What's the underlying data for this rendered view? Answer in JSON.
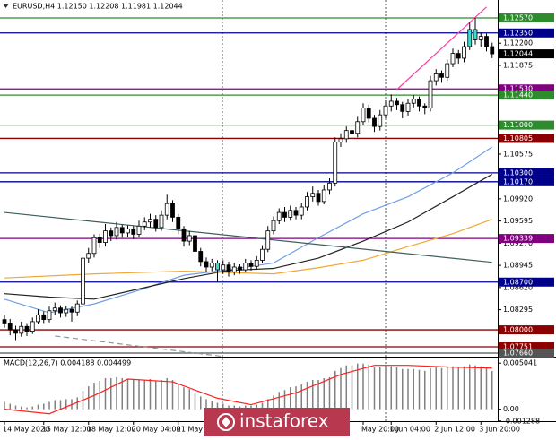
{
  "chart_data": {
    "type": "candlestick",
    "title": "EURUSD,H4  1.12150 1.12208 1.11981 1.12044",
    "categories": [
      "14 May 2020",
      null,
      null,
      null,
      null,
      null,
      null,
      "15 May 12:00",
      null,
      null,
      null,
      null,
      null,
      null,
      null,
      "18 May 12:00",
      null,
      null,
      null,
      null,
      null,
      null,
      null,
      "20 May 04:00",
      null,
      null,
      null,
      null,
      null,
      null,
      null,
      "21 May 12",
      null,
      null,
      null,
      null,
      null,
      null,
      null,
      null,
      null,
      null,
      null,
      null,
      null,
      null,
      null,
      null,
      null,
      null,
      null,
      null,
      null,
      null,
      null,
      null,
      null,
      null,
      null,
      null,
      null,
      null,
      null,
      null,
      "May 20:00",
      null,
      null,
      null,
      null,
      "1 Jun 04:00",
      null,
      null,
      null,
      null,
      null,
      null,
      null,
      "2 Jun 12:00",
      null,
      null,
      null,
      null,
      null,
      null,
      null,
      "3 Jun 20:00",
      null,
      null
    ],
    "open": [
      1.0815,
      1.081,
      1.08,
      1.0795,
      1.0805,
      1.0798,
      1.0812,
      1.0822,
      1.0815,
      1.0828,
      1.0832,
      1.0825,
      1.083,
      1.0826,
      1.0838,
      1.0905,
      1.0912,
      1.0935,
      1.0928,
      1.0945,
      1.0938,
      1.095,
      1.0942,
      1.0948,
      1.094,
      1.0952,
      1.0958,
      1.0962,
      1.095,
      1.0968,
      1.0985,
      1.0965,
      1.0948,
      1.093,
      1.0938,
      1.0915,
      1.09,
      1.0892,
      1.0898,
      1.0888,
      1.0895,
      1.0885,
      1.0892,
      1.0888,
      1.0898,
      1.0893,
      1.0902,
      1.0918,
      1.0945,
      1.096,
      1.0972,
      1.0965,
      1.0975,
      1.0968,
      1.098,
      1.0995,
      1.1,
      1.0988,
      1.1005,
      1.1015,
      1.1075,
      1.108,
      1.1092,
      1.1088,
      1.1105,
      1.1125,
      1.111,
      1.1098,
      1.1115,
      1.1128,
      1.1135,
      1.113,
      1.112,
      1.1132,
      1.1138,
      1.1128,
      1.1125,
      1.1165,
      1.1175,
      1.117,
      1.119,
      1.1205,
      1.1198,
      1.1215,
      1.124,
      1.1225,
      1.123,
      1.1215
    ],
    "high": [
      1.0822,
      1.0816,
      1.0806,
      1.0812,
      1.081,
      1.0818,
      1.083,
      1.0827,
      1.0834,
      1.084,
      1.0836,
      1.0835,
      1.0834,
      1.0843,
      1.0912,
      1.092,
      1.094,
      1.0941,
      1.0955,
      1.095,
      1.0958,
      1.0954,
      1.0953,
      1.0952,
      1.096,
      1.0965,
      1.097,
      1.0968,
      1.0975,
      1.0998,
      1.099,
      1.097,
      1.0952,
      1.0945,
      1.0942,
      1.092,
      1.0906,
      1.0904,
      1.0902,
      1.0902,
      1.09,
      1.0898,
      1.0896,
      1.0904,
      1.0902,
      1.0908,
      1.0924,
      1.0952,
      1.0966,
      1.0978,
      1.098,
      1.0982,
      1.098,
      1.0986,
      1.1002,
      1.101,
      1.1005,
      1.1012,
      1.1022,
      1.1082,
      1.1088,
      1.1098,
      1.1096,
      1.1112,
      1.1132,
      1.113,
      1.1115,
      1.1122,
      1.1136,
      1.1145,
      1.114,
      1.1134,
      1.1138,
      1.1144,
      1.1142,
      1.1132,
      1.1172,
      1.1182,
      1.118,
      1.1196,
      1.1212,
      1.121,
      1.1222,
      1.125,
      1.1257,
      1.1236,
      1.1234,
      1.12208
    ],
    "low": [
      1.0803,
      1.0792,
      1.0785,
      1.079,
      1.0791,
      1.0794,
      1.0808,
      1.081,
      1.0811,
      1.0822,
      1.0818,
      1.0819,
      1.0812,
      1.082,
      1.0834,
      1.0898,
      1.0906,
      1.092,
      1.0922,
      1.093,
      1.0932,
      1.0935,
      1.0936,
      1.0933,
      1.0936,
      1.0946,
      1.095,
      1.0944,
      1.0945,
      1.0962,
      1.0958,
      1.094,
      1.0922,
      1.0924,
      1.0905,
      1.0893,
      1.0885,
      1.0886,
      1.087,
      1.0882,
      1.0878,
      1.088,
      1.0882,
      1.0884,
      1.0887,
      1.0888,
      1.0898,
      1.0914,
      1.094,
      1.0955,
      1.0958,
      1.096,
      1.0962,
      1.0962,
      1.0975,
      1.0988,
      1.0982,
      1.0984,
      1.0998,
      1.101,
      1.1068,
      1.1074,
      1.108,
      1.1082,
      1.11,
      1.1104,
      1.109,
      1.1092,
      1.111,
      1.112,
      1.1122,
      1.111,
      1.1114,
      1.1126,
      1.112,
      1.1116,
      1.112,
      1.1158,
      1.1162,
      1.1165,
      1.1185,
      1.119,
      1.1192,
      1.121,
      1.1218,
      1.1215,
      1.1208,
      1.11981
    ],
    "close": [
      1.081,
      1.08,
      1.0795,
      1.0805,
      1.0798,
      1.0812,
      1.0822,
      1.0815,
      1.0828,
      1.0832,
      1.0825,
      1.083,
      1.0826,
      1.0838,
      1.0905,
      1.0912,
      1.0935,
      1.0928,
      1.0945,
      1.0938,
      1.095,
      1.0942,
      1.0948,
      1.094,
      1.0952,
      1.0958,
      1.0962,
      1.095,
      1.0968,
      1.0985,
      1.0965,
      1.0948,
      1.093,
      1.0938,
      1.0915,
      1.09,
      1.0892,
      1.0898,
      1.0888,
      1.0895,
      1.0885,
      1.0892,
      1.0888,
      1.0898,
      1.0893,
      1.0902,
      1.0918,
      1.0945,
      1.096,
      1.0972,
      1.0965,
      1.0975,
      1.0968,
      1.098,
      1.0995,
      1.1,
      1.0988,
      1.1005,
      1.1015,
      1.1075,
      1.108,
      1.1092,
      1.1088,
      1.1105,
      1.1125,
      1.111,
      1.1098,
      1.1115,
      1.1128,
      1.1135,
      1.113,
      1.112,
      1.1132,
      1.1138,
      1.1128,
      1.1125,
      1.1165,
      1.1175,
      1.117,
      1.119,
      1.1205,
      1.1198,
      1.1215,
      1.124,
      1.1225,
      1.123,
      1.1215,
      1.12044
    ],
    "up_color": "#ffffff",
    "down_color": "#000000",
    "highlight_color": "#3fd9d0",
    "highlight_bars": [
      38,
      83,
      84
    ],
    "ylim": [
      1.07607,
      1.12833
    ],
    "yticks": [
      {
        "value": 1.122,
        "label": "1.12200"
      },
      {
        "value": 1.11875,
        "label": "1.11875"
      },
      {
        "value": 1.10575,
        "label": "1.10575"
      },
      {
        "value": 1.0992,
        "label": "1.09920"
      },
      {
        "value": 1.09595,
        "label": "1.09595"
      },
      {
        "value": 1.0927,
        "label": "1.09270"
      },
      {
        "value": 1.08945,
        "label": "1.08945"
      },
      {
        "value": 1.0862,
        "label": "1.08620"
      },
      {
        "value": 1.08295,
        "label": "1.08295"
      },
      {
        "value": 1.0797,
        "label": "1.07970"
      }
    ],
    "levels": [
      {
        "value": 1.1257,
        "label": "1.12570",
        "color": "#2e8b2e"
      },
      {
        "value": 1.1235,
        "label": "1.12350",
        "color": "#00008b"
      },
      {
        "value": 1.1153,
        "label": "1.11530",
        "color": "#800080"
      },
      {
        "value": 1.1144,
        "label": "1.11440",
        "color": "#2e8b2e"
      },
      {
        "value": 1.11,
        "label": "1.11000",
        "color": "#2e8b2e"
      },
      {
        "value": 1.10805,
        "label": "1.10805",
        "color": "#8b0000"
      },
      {
        "value": 1.103,
        "label": "1.10300",
        "color": "#00008b"
      },
      {
        "value": 1.1017,
        "label": "1.10170",
        "color": "#00008b"
      },
      {
        "value": 1.09339,
        "label": "1.09339",
        "color": "#800080"
      },
      {
        "value": 1.087,
        "label": "1.08700",
        "color": "#00008b"
      },
      {
        "value": 1.08,
        "label": "1.08000",
        "color": "#8b0000"
      },
      {
        "value": 1.07751,
        "label": "1.07751",
        "color": "#8b0000"
      },
      {
        "value": 1.0766,
        "label": "1.07660",
        "color": "#555555"
      }
    ],
    "overlays": [
      {
        "color": "#6f9fe6",
        "x": [
          0,
          8,
          16,
          24,
          32,
          40,
          48,
          56,
          64,
          72,
          80,
          87
        ],
        "values": [
          1.0845,
          1.0825,
          1.0838,
          1.0858,
          1.088,
          1.0888,
          1.0898,
          1.0935,
          1.097,
          1.0995,
          1.103,
          1.1068
        ]
      },
      {
        "color": "#222222",
        "x": [
          0,
          8,
          16,
          24,
          32,
          40,
          48,
          56,
          64,
          72,
          80,
          87
        ],
        "values": [
          1.0853,
          1.0848,
          1.0845,
          1.086,
          1.0875,
          1.0887,
          1.089,
          1.0905,
          1.093,
          1.0958,
          1.0995,
          1.1028
        ]
      },
      {
        "color": "#f0a830",
        "x": [
          0,
          16,
          32,
          48,
          56,
          64,
          72,
          80,
          87
        ],
        "values": [
          1.0876,
          1.0882,
          1.0886,
          1.0882,
          1.0891,
          1.0902,
          1.0922,
          1.0941,
          1.0962
        ]
      },
      {
        "color": "#3f5f5f",
        "x": [
          0,
          87
        ],
        "values": [
          1.0972,
          1.0899
        ]
      },
      {
        "color": "#ff3fa0",
        "x": [
          70,
          86
        ],
        "values": [
          1.1152,
          1.1273
        ]
      },
      {
        "color": "#8a9a9a",
        "x": [
          9,
          39
        ],
        "values": [
          1.0791,
          1.0761
        ],
        "dashed": true
      }
    ],
    "watermark": "instaforex",
    "indicator": {
      "type": "macd",
      "title": "MACD(12,26,7) 0.004188 0.004499",
      "color": "#808080",
      "values": [
        0.0008,
        0.0006,
        0.0004,
        0.0003,
        0.0002,
        0.0003,
        0.0005,
        0.0006,
        0.0008,
        0.001,
        0.001,
        0.0011,
        0.0011,
        0.0013,
        0.002,
        0.0025,
        0.0029,
        0.0031,
        0.0034,
        0.0034,
        0.0035,
        0.0034,
        0.0033,
        0.0032,
        0.0032,
        0.0032,
        0.0033,
        0.0031,
        0.0032,
        0.0034,
        0.0032,
        0.0028,
        0.0024,
        0.0022,
        0.0018,
        0.0014,
        0.0011,
        0.0009,
        0.0007,
        0.0006,
        0.0004,
        0.0004,
        0.0003,
        0.0004,
        0.0004,
        0.0005,
        0.0007,
        0.0011,
        0.0015,
        0.0019,
        0.0021,
        0.0024,
        0.0025,
        0.0027,
        0.003,
        0.0032,
        0.0032,
        0.0034,
        0.0035,
        0.0042,
        0.0045,
        0.0048,
        0.0048,
        0.005,
        0.005,
        0.0049,
        0.0046,
        0.0046,
        0.0047,
        0.0047,
        0.0046,
        0.0044,
        0.0044,
        0.0044,
        0.0043,
        0.0042,
        0.0045,
        0.0046,
        0.0045,
        0.0046,
        0.0047,
        0.0046,
        0.0047,
        0.0049,
        0.0048,
        0.0047,
        0.0045,
        0.004188
      ],
      "signal": {
        "color": "#ff2020",
        "x": [
          0,
          8,
          16,
          22,
          30,
          38,
          44,
          52,
          60,
          66,
          72,
          80,
          87
        ],
        "values": [
          0.0,
          -0.0005,
          0.0015,
          0.0033,
          0.003,
          0.0012,
          0.0005,
          0.0018,
          0.0038,
          0.0048,
          0.0048,
          0.0046,
          0.004499
        ]
      },
      "ylim": [
        -0.00131,
        0.00575
      ],
      "yticks": [
        {
          "value": 0.005041,
          "label": "0.005041"
        },
        {
          "value": 0,
          "label": "0.00"
        },
        {
          "value": -0.001288,
          "label": "-0.001288"
        }
      ]
    }
  }
}
